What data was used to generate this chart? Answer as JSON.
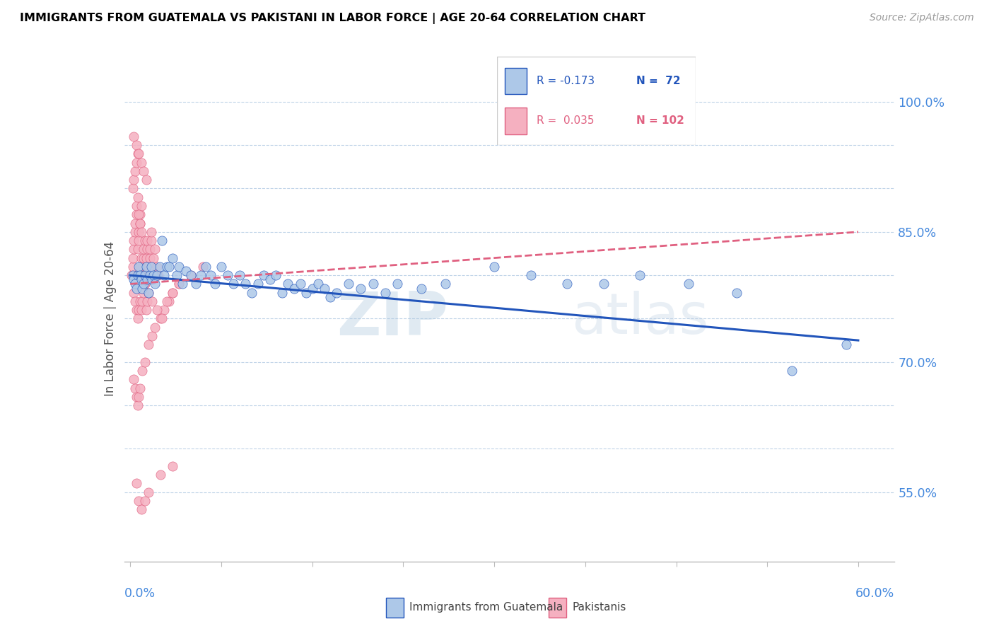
{
  "title": "IMMIGRANTS FROM GUATEMALA VS PAKISTANI IN LABOR FORCE | AGE 20-64 CORRELATION CHART",
  "source": "Source: ZipAtlas.com",
  "ylabel": "In Labor Force | Age 20-64",
  "ylim": [
    0.47,
    1.03
  ],
  "xlim": [
    -0.005,
    0.63
  ],
  "watermark_zip": "ZIP",
  "watermark_atlas": "atlas",
  "legend_r1": "R = -0.173",
  "legend_n1": "N =  72",
  "legend_r2": "R =  0.035",
  "legend_n2": "N = 102",
  "color_guatemala": "#adc8e8",
  "color_pakistan": "#f5b0c0",
  "color_trend_guatemala": "#2255bb",
  "color_trend_pakistan": "#e06080",
  "color_axis_text": "#4488dd",
  "color_grid": "#c0d4e8",
  "guatemala_x": [
    0.002,
    0.003,
    0.004,
    0.005,
    0.006,
    0.007,
    0.008,
    0.009,
    0.01,
    0.011,
    0.012,
    0.013,
    0.014,
    0.015,
    0.016,
    0.017,
    0.018,
    0.019,
    0.02,
    0.022,
    0.024,
    0.026,
    0.028,
    0.03,
    0.032,
    0.035,
    0.038,
    0.04,
    0.043,
    0.046,
    0.05,
    0.054,
    0.058,
    0.062,
    0.066,
    0.07,
    0.075,
    0.08,
    0.085,
    0.09,
    0.095,
    0.1,
    0.105,
    0.11,
    0.115,
    0.12,
    0.125,
    0.13,
    0.135,
    0.14,
    0.145,
    0.15,
    0.155,
    0.16,
    0.165,
    0.17,
    0.18,
    0.19,
    0.2,
    0.21,
    0.22,
    0.24,
    0.26,
    0.3,
    0.33,
    0.36,
    0.39,
    0.42,
    0.46,
    0.5,
    0.545,
    0.59
  ],
  "guatemala_y": [
    0.8,
    0.795,
    0.79,
    0.785,
    0.8,
    0.81,
    0.8,
    0.795,
    0.785,
    0.79,
    0.8,
    0.81,
    0.795,
    0.78,
    0.8,
    0.81,
    0.795,
    0.8,
    0.79,
    0.8,
    0.81,
    0.84,
    0.8,
    0.81,
    0.81,
    0.82,
    0.8,
    0.81,
    0.79,
    0.805,
    0.8,
    0.79,
    0.8,
    0.81,
    0.8,
    0.79,
    0.81,
    0.8,
    0.79,
    0.8,
    0.79,
    0.78,
    0.79,
    0.8,
    0.795,
    0.8,
    0.78,
    0.79,
    0.785,
    0.79,
    0.78,
    0.785,
    0.79,
    0.785,
    0.775,
    0.78,
    0.79,
    0.785,
    0.79,
    0.78,
    0.79,
    0.785,
    0.79,
    0.81,
    0.8,
    0.79,
    0.79,
    0.8,
    0.79,
    0.78,
    0.69,
    0.72
  ],
  "pakistan_x": [
    0.001,
    0.002,
    0.002,
    0.003,
    0.003,
    0.004,
    0.004,
    0.005,
    0.005,
    0.006,
    0.006,
    0.007,
    0.007,
    0.008,
    0.008,
    0.009,
    0.009,
    0.01,
    0.01,
    0.011,
    0.011,
    0.012,
    0.012,
    0.013,
    0.013,
    0.014,
    0.014,
    0.015,
    0.015,
    0.016,
    0.016,
    0.017,
    0.017,
    0.018,
    0.018,
    0.019,
    0.02,
    0.021,
    0.022,
    0.023,
    0.003,
    0.004,
    0.005,
    0.006,
    0.007,
    0.008,
    0.009,
    0.01,
    0.011,
    0.012,
    0.013,
    0.014,
    0.002,
    0.003,
    0.004,
    0.005,
    0.006,
    0.007,
    0.008,
    0.009,
    0.003,
    0.004,
    0.005,
    0.006,
    0.007,
    0.008,
    0.01,
    0.012,
    0.015,
    0.018,
    0.02,
    0.025,
    0.028,
    0.032,
    0.035,
    0.04,
    0.05,
    0.06,
    0.003,
    0.005,
    0.007,
    0.009,
    0.011,
    0.013,
    0.015,
    0.018,
    0.022,
    0.026,
    0.03,
    0.035,
    0.04,
    0.005,
    0.007,
    0.009,
    0.012,
    0.015,
    0.025,
    0.035,
    0.005,
    0.008,
    0.01,
    0.015
  ],
  "pakistan_y": [
    0.8,
    0.81,
    0.82,
    0.83,
    0.84,
    0.85,
    0.86,
    0.87,
    0.88,
    0.89,
    0.83,
    0.84,
    0.85,
    0.86,
    0.87,
    0.88,
    0.82,
    0.81,
    0.8,
    0.82,
    0.83,
    0.84,
    0.79,
    0.81,
    0.82,
    0.83,
    0.84,
    0.8,
    0.81,
    0.82,
    0.83,
    0.84,
    0.85,
    0.8,
    0.81,
    0.82,
    0.83,
    0.8,
    0.81,
    0.8,
    0.78,
    0.77,
    0.76,
    0.75,
    0.76,
    0.77,
    0.76,
    0.77,
    0.78,
    0.79,
    0.76,
    0.77,
    0.9,
    0.91,
    0.92,
    0.93,
    0.94,
    0.87,
    0.86,
    0.85,
    0.68,
    0.67,
    0.66,
    0.65,
    0.66,
    0.67,
    0.69,
    0.7,
    0.72,
    0.73,
    0.74,
    0.75,
    0.76,
    0.77,
    0.78,
    0.79,
    0.8,
    0.81,
    0.96,
    0.95,
    0.94,
    0.93,
    0.92,
    0.91,
    0.78,
    0.77,
    0.76,
    0.75,
    0.77,
    0.78,
    0.79,
    0.56,
    0.54,
    0.53,
    0.54,
    0.55,
    0.57,
    0.58,
    0.8,
    0.81,
    0.79,
    0.8
  ]
}
